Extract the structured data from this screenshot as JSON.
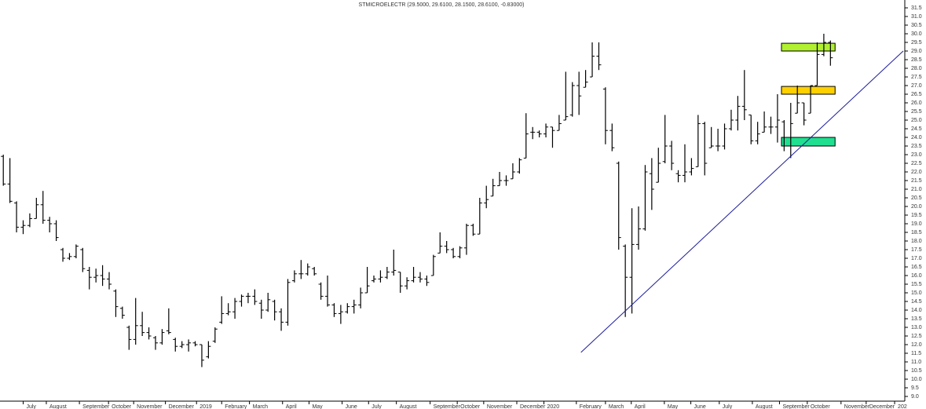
{
  "chart_data": {
    "type": "ohlc",
    "title": "STMICROELECTR (29.5000, 29.6100, 28.1500, 28.6100, -0.83000)",
    "color": "#000000",
    "x": [
      0,
      1,
      2,
      3,
      4,
      5,
      6,
      7,
      8,
      9,
      10,
      11,
      12,
      13,
      14,
      15,
      16,
      17,
      18,
      19,
      20,
      21,
      22,
      23,
      24,
      25,
      26,
      27,
      28,
      29,
      30,
      31,
      32,
      33,
      34,
      35,
      36,
      37,
      38,
      39,
      40,
      41,
      42,
      43,
      44,
      45,
      46,
      47,
      48,
      49,
      50,
      51,
      52,
      53,
      54,
      55,
      56,
      57,
      58,
      59,
      60,
      61,
      62,
      63,
      64,
      65,
      66,
      67,
      68,
      69,
      70,
      71,
      72,
      73,
      74,
      75,
      76,
      77,
      78,
      79,
      80,
      81,
      82,
      83,
      84,
      85,
      86,
      87,
      88,
      89,
      90,
      91,
      92,
      93,
      94,
      95,
      96,
      97,
      98,
      99,
      100,
      101,
      102,
      103,
      104,
      105,
      106,
      107,
      108,
      109,
      110,
      111,
      112,
      113,
      114,
      115,
      116,
      117,
      118,
      119,
      120,
      121,
      122,
      123,
      124,
      125
    ],
    "open": [
      22.9,
      21.3,
      20.2,
      18.8,
      18.9,
      19.3,
      20.1,
      19.2,
      19.0,
      17.5,
      17.0,
      17.1,
      17.5,
      16.3,
      15.9,
      16.0,
      15.8,
      15.1,
      14.1,
      13.0,
      12.3,
      13.1,
      12.7,
      12.4,
      12.1,
      12.8,
      12.3,
      11.9,
      12.0,
      12.1,
      12.0,
      11.3,
      12.2,
      13.3,
      13.8,
      13.9,
      14.5,
      14.8,
      14.8,
      14.4,
      14.0,
      14.5,
      13.9,
      13.3,
      15.7,
      16.1,
      16.1,
      16.4,
      15.5,
      14.8,
      14.3,
      13.8,
      13.9,
      14.2,
      14.3,
      15.0,
      15.7,
      15.8,
      15.9,
      16.2,
      16.2,
      15.4,
      15.7,
      15.9,
      15.8,
      16.0,
      17.3,
      17.7,
      17.5,
      17.1,
      17.6,
      18.9,
      18.4,
      20.2,
      20.6,
      21.2,
      21.5,
      21.6,
      22.0,
      22.8,
      24.3,
      24.3,
      24.2,
      24.6,
      24.4,
      25.0,
      25.3,
      27.0,
      26.9,
      27.5,
      28.7,
      26.8,
      24.4,
      22.5,
      17.7,
      15.9,
      17.8,
      18.7,
      21.9,
      21.4,
      22.6,
      23.5,
      21.9,
      21.8,
      22.0,
      22.3,
      24.8,
      23.4,
      23.5,
      23.5,
      24.5,
      25.0,
      25.8,
      25.3,
      23.8,
      24.3,
      24.6,
      24.6,
      24.9,
      24.0,
      25.4,
      26.0,
      25.4,
      27.0,
      28.8,
      29.5
    ],
    "high": [
      23.0,
      22.8,
      20.3,
      19.2,
      19.6,
      20.5,
      20.9,
      19.4,
      19.2,
      17.6,
      17.3,
      17.8,
      17.6,
      16.5,
      16.4,
      16.6,
      16.2,
      15.2,
      14.2,
      13.1,
      14.7,
      13.9,
      13.0,
      12.5,
      12.9,
      14.1,
      12.4,
      12.2,
      12.3,
      12.2,
      12.0,
      12.2,
      13.0,
      14.8,
      14.4,
      14.7,
      14.9,
      15.0,
      15.2,
      14.6,
      15.0,
      14.6,
      14.1,
      15.8,
      16.3,
      16.9,
      16.7,
      16.5,
      15.6,
      16.0,
      14.4,
      14.3,
      14.4,
      14.6,
      15.3,
      16.5,
      16.0,
      16.3,
      16.5,
      17.5,
      16.2,
      15.9,
      16.5,
      16.2,
      16.0,
      17.2,
      18.5,
      18.0,
      17.6,
      17.7,
      19.0,
      19.0,
      20.5,
      21.2,
      21.6,
      22.0,
      21.8,
      22.5,
      22.8,
      25.4,
      24.6,
      24.4,
      24.8,
      24.6,
      25.3,
      27.8,
      27.2,
      27.8,
      27.9,
      29.5,
      29.5,
      26.9,
      24.8,
      22.6,
      17.8,
      19.9,
      20.0,
      22.4,
      22.8,
      23.4,
      25.3,
      23.8,
      22.1,
      23.6,
      22.8,
      25.3,
      24.9,
      24.6,
      24.5,
      24.8,
      25.6,
      26.4,
      27.9,
      25.3,
      24.9,
      25.5,
      25.2,
      26.5,
      25.0,
      26.0,
      27.0,
      26.0,
      27.0,
      29.5,
      30.0,
      29.61
    ],
    "low": [
      21.2,
      20.2,
      18.5,
      18.4,
      18.8,
      19.3,
      19.0,
      18.5,
      18.0,
      16.8,
      16.9,
      17.0,
      16.2,
      15.2,
      15.6,
      15.4,
      15.2,
      13.6,
      13.5,
      11.7,
      12.0,
      12.5,
      12.3,
      11.7,
      12.0,
      12.6,
      11.6,
      11.8,
      11.6,
      11.9,
      10.7,
      11.2,
      12.1,
      13.2,
      13.7,
      13.5,
      14.2,
      14.4,
      14.3,
      13.5,
      13.9,
      13.4,
      12.8,
      13.1,
      15.6,
      15.8,
      16.0,
      16.0,
      14.6,
      14.2,
      13.6,
      13.2,
      13.8,
      13.8,
      14.1,
      15.0,
      15.6,
      15.6,
      15.8,
      16.0,
      15.0,
      15.2,
      15.6,
      15.6,
      15.4,
      16.0,
      17.3,
      17.3,
      17.0,
      17.0,
      17.2,
      18.3,
      18.4,
      19.9,
      20.6,
      21.2,
      21.2,
      21.6,
      21.9,
      22.8,
      23.9,
      24.0,
      24.0,
      23.4,
      24.4,
      25.0,
      25.2,
      25.3,
      26.9,
      27.5,
      27.9,
      23.6,
      23.2,
      17.5,
      13.6,
      13.8,
      17.5,
      18.6,
      19.8,
      21.4,
      22.5,
      22.1,
      21.4,
      21.4,
      21.8,
      22.3,
      21.8,
      23.4,
      23.2,
      23.3,
      24.4,
      24.4,
      25.0,
      23.6,
      23.6,
      24.3,
      24.2,
      23.7,
      23.2,
      22.8,
      25.4,
      24.7,
      25.4,
      27.0,
      28.7,
      28.15
    ],
    "close": [
      21.3,
      20.3,
      18.8,
      18.9,
      19.3,
      20.1,
      19.2,
      19.0,
      18.2,
      17.0,
      17.1,
      17.7,
      16.4,
      15.9,
      16.0,
      15.8,
      15.5,
      14.2,
      13.7,
      12.3,
      13.1,
      12.7,
      12.5,
      12.1,
      12.7,
      12.7,
      11.9,
      12.0,
      12.1,
      12.0,
      11.1,
      11.9,
      12.9,
      13.8,
      13.9,
      14.5,
      14.8,
      14.8,
      14.5,
      14.0,
      14.6,
      13.9,
      13.3,
      15.6,
      16.1,
      16.1,
      16.5,
      16.1,
      14.8,
      14.3,
      13.8,
      13.9,
      14.2,
      14.3,
      15.0,
      15.4,
      15.8,
      15.9,
      16.2,
      16.3,
      15.4,
      15.7,
      15.9,
      15.8,
      15.6,
      17.1,
      17.7,
      17.5,
      17.1,
      17.6,
      18.9,
      18.4,
      20.2,
      20.4,
      21.2,
      21.5,
      21.5,
      22.0,
      22.7,
      24.2,
      24.3,
      24.2,
      24.6,
      24.4,
      24.8,
      25.2,
      27.0,
      26.4,
      27.2,
      28.7,
      28.2,
      24.4,
      23.4,
      18.2,
      15.9,
      17.8,
      18.7,
      22.0,
      21.0,
      22.5,
      23.5,
      22.5,
      21.8,
      22.0,
      22.2,
      24.8,
      22.5,
      23.5,
      23.5,
      24.5,
      25.0,
      25.8,
      25.6,
      23.8,
      24.2,
      24.6,
      24.6,
      25.0,
      24.0,
      24.8,
      26.0,
      25.0,
      27.0,
      28.8,
      29.5,
      28.61
    ],
    "xlim": [
      -0.5,
      136
    ],
    "ylim": [
      9,
      31.5
    ],
    "yticks": [
      {
        "value": 9,
        "label": "9.0"
      },
      9.5,
      {
        "value": 10,
        "label": "10.0"
      },
      10.5,
      {
        "value": 11,
        "label": "11.0"
      },
      11.5,
      {
        "value": 12,
        "label": "12.0"
      },
      12.5,
      {
        "value": 13,
        "label": "13.0"
      },
      13.5,
      {
        "value": 14,
        "label": "14.0"
      },
      14.5,
      {
        "value": 15,
        "label": "15.0"
      },
      15.5,
      {
        "value": 16,
        "label": "16.0"
      },
      16.5,
      {
        "value": 17,
        "label": "17.0"
      },
      17.5,
      {
        "value": 18,
        "label": "18.0"
      },
      18.5,
      {
        "value": 19,
        "label": "19.0"
      },
      19.5,
      {
        "value": 20,
        "label": "20.0"
      },
      20.5,
      {
        "value": 21,
        "label": "21.0"
      },
      21.5,
      {
        "value": 22,
        "label": "22.0"
      },
      22.5,
      {
        "value": 23,
        "label": "23.0"
      },
      23.5,
      {
        "value": 24,
        "label": "24.0"
      },
      24.5,
      {
        "value": 25,
        "label": "25.0"
      },
      25.5,
      {
        "value": 26,
        "label": "26.0"
      },
      26.5,
      {
        "value": 27,
        "label": "27.0"
      },
      27.5,
      {
        "value": 28,
        "label": "28.0"
      },
      28.5,
      {
        "value": 29,
        "label": "29.0"
      },
      29.5,
      {
        "value": 30,
        "label": "30.0"
      },
      30.5,
      {
        "value": 31,
        "label": "31.0"
      },
      31.5
    ],
    "xticks": [
      {
        "value": 3.0,
        "label": "July"
      },
      {
        "value": 6.5,
        "label": "August"
      },
      {
        "value": 11.5,
        "label": "September"
      },
      {
        "value": 15.9,
        "label": "October"
      },
      {
        "value": 19.7,
        "label": "November"
      },
      {
        "value": 24.5,
        "label": "December"
      },
      {
        "value": 29.2,
        "label": "2019"
      },
      {
        "value": 33.0,
        "label": "February"
      },
      {
        "value": 37.2,
        "label": "March"
      },
      {
        "value": 42.2,
        "label": "April"
      },
      {
        "value": 46.2,
        "label": "May"
      },
      {
        "value": 51.2,
        "label": "June"
      },
      {
        "value": 55.2,
        "label": "July"
      },
      {
        "value": 59.4,
        "label": "August"
      },
      {
        "value": 64.5,
        "label": "September"
      },
      {
        "value": 68.6,
        "label": "October"
      },
      {
        "value": 72.6,
        "label": "November"
      },
      {
        "value": 77.6,
        "label": "December"
      },
      {
        "value": 81.7,
        "label": "2020"
      },
      {
        "value": 86.6,
        "label": "February"
      },
      {
        "value": 91.0,
        "label": "March"
      },
      {
        "value": 94.9,
        "label": "April"
      },
      {
        "value": 99.9,
        "label": "May"
      },
      {
        "value": 103.9,
        "label": "June"
      },
      {
        "value": 108.2,
        "label": "July"
      },
      {
        "value": 113.2,
        "label": "August"
      },
      {
        "value": 117.3,
        "label": "September"
      },
      {
        "value": 121.5,
        "label": "October"
      },
      {
        "value": 126.6,
        "label": "November"
      },
      {
        "value": 130.4,
        "label": "December"
      },
      {
        "value": 134.7,
        "label": "202"
      }
    ],
    "trendline": {
      "color": "#1c1c9c",
      "x": [
        87.3,
        136
      ],
      "y": [
        11.55,
        29.0
      ]
    },
    "zones": [
      {
        "color": "#b0f030",
        "x": [
          117.6,
          125.7
        ],
        "y": [
          29.0,
          29.45
        ]
      },
      {
        "color": "#ffd000",
        "x": [
          117.6,
          125.7
        ],
        "y": [
          26.5,
          26.95
        ]
      },
      {
        "color": "#20e090",
        "x": [
          117.6,
          125.7
        ],
        "y": [
          23.5,
          24.0
        ]
      }
    ]
  }
}
